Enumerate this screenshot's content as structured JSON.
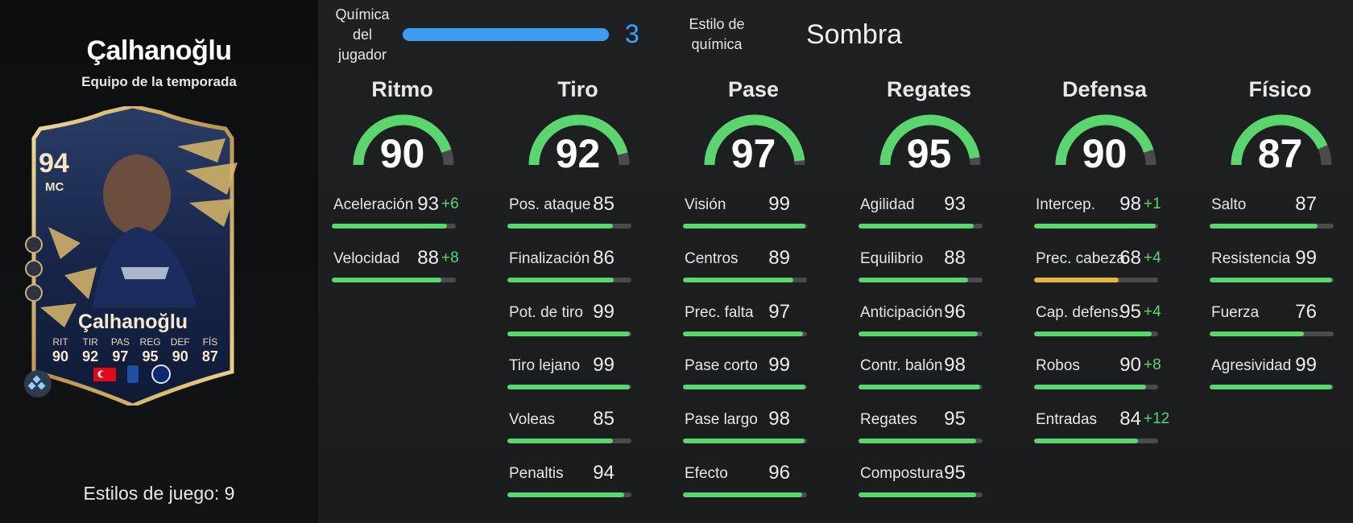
{
  "player": {
    "name": "Çalhanoğlu",
    "subtitle": "Equipo de la temporada",
    "playstyles_label": "Estilos de juego: 9"
  },
  "card": {
    "rating": "94",
    "position": "MC",
    "name": "Çalhanoğlu",
    "stats": [
      {
        "label": "RIT",
        "value": "90"
      },
      {
        "label": "TIR",
        "value": "92"
      },
      {
        "label": "PAS",
        "value": "97"
      },
      {
        "label": "REG",
        "value": "95"
      },
      {
        "label": "DEF",
        "value": "90"
      },
      {
        "label": "FÍS",
        "value": "87"
      }
    ],
    "icons": [
      "nation-flag-turkey-icon",
      "league-serie-a-icon",
      "club-inter-icon",
      "evolution-diamond-icon"
    ]
  },
  "chemistry": {
    "label": "Química del jugador",
    "value": "3",
    "fill": 1.0,
    "style_label": "Estilo de química",
    "style_value": "Sombra",
    "bar_color": "#3c9cf0"
  },
  "colors": {
    "green": "#5bd66e",
    "yellow": "#e8b63b",
    "track": "#4a4b4d",
    "accent_blue": "#3ea2ff"
  },
  "categories": [
    {
      "title": "Ritmo",
      "value": 90,
      "stats": [
        {
          "name": "Aceleración",
          "value": 93,
          "bonus": "+6"
        },
        {
          "name": "Velocidad",
          "value": 88,
          "bonus": "+8"
        }
      ]
    },
    {
      "title": "Tiro",
      "value": 92,
      "stats": [
        {
          "name": "Pos. ataque",
          "value": 85
        },
        {
          "name": "Finalización",
          "value": 86
        },
        {
          "name": "Pot. de tiro",
          "value": 99
        },
        {
          "name": "Tiro lejano",
          "value": 99
        },
        {
          "name": "Voleas",
          "value": 85
        },
        {
          "name": "Penaltis",
          "value": 94
        }
      ]
    },
    {
      "title": "Pase",
      "value": 97,
      "stats": [
        {
          "name": "Visión",
          "value": 99
        },
        {
          "name": "Centros",
          "value": 89
        },
        {
          "name": "Prec. falta",
          "value": 97
        },
        {
          "name": "Pase corto",
          "value": 99
        },
        {
          "name": "Pase largo",
          "value": 98
        },
        {
          "name": "Efecto",
          "value": 96
        }
      ]
    },
    {
      "title": "Regates",
      "value": 95,
      "stats": [
        {
          "name": "Agilidad",
          "value": 93
        },
        {
          "name": "Equilibrio",
          "value": 88
        },
        {
          "name": "Anticipación",
          "value": 96
        },
        {
          "name": "Contr. balón",
          "value": 98
        },
        {
          "name": "Regates",
          "value": 95
        },
        {
          "name": "Compostura",
          "value": 95
        }
      ]
    },
    {
      "title": "Defensa",
      "value": 90,
      "stats": [
        {
          "name": "Intercep.",
          "value": 98,
          "bonus": "+1"
        },
        {
          "name": "Prec. cabeza",
          "value": 68,
          "bonus": "+4"
        },
        {
          "name": "Cap. defens.",
          "value": 95,
          "bonus": "+4"
        },
        {
          "name": "Robos",
          "value": 90,
          "bonus": "+8"
        },
        {
          "name": "Entradas",
          "value": 84,
          "bonus": "+12"
        }
      ]
    },
    {
      "title": "Físico",
      "value": 87,
      "stats": [
        {
          "name": "Salto",
          "value": 87
        },
        {
          "name": "Resistencia",
          "value": 99
        },
        {
          "name": "Fuerza",
          "value": 76
        },
        {
          "name": "Agresividad",
          "value": 99
        }
      ]
    }
  ]
}
